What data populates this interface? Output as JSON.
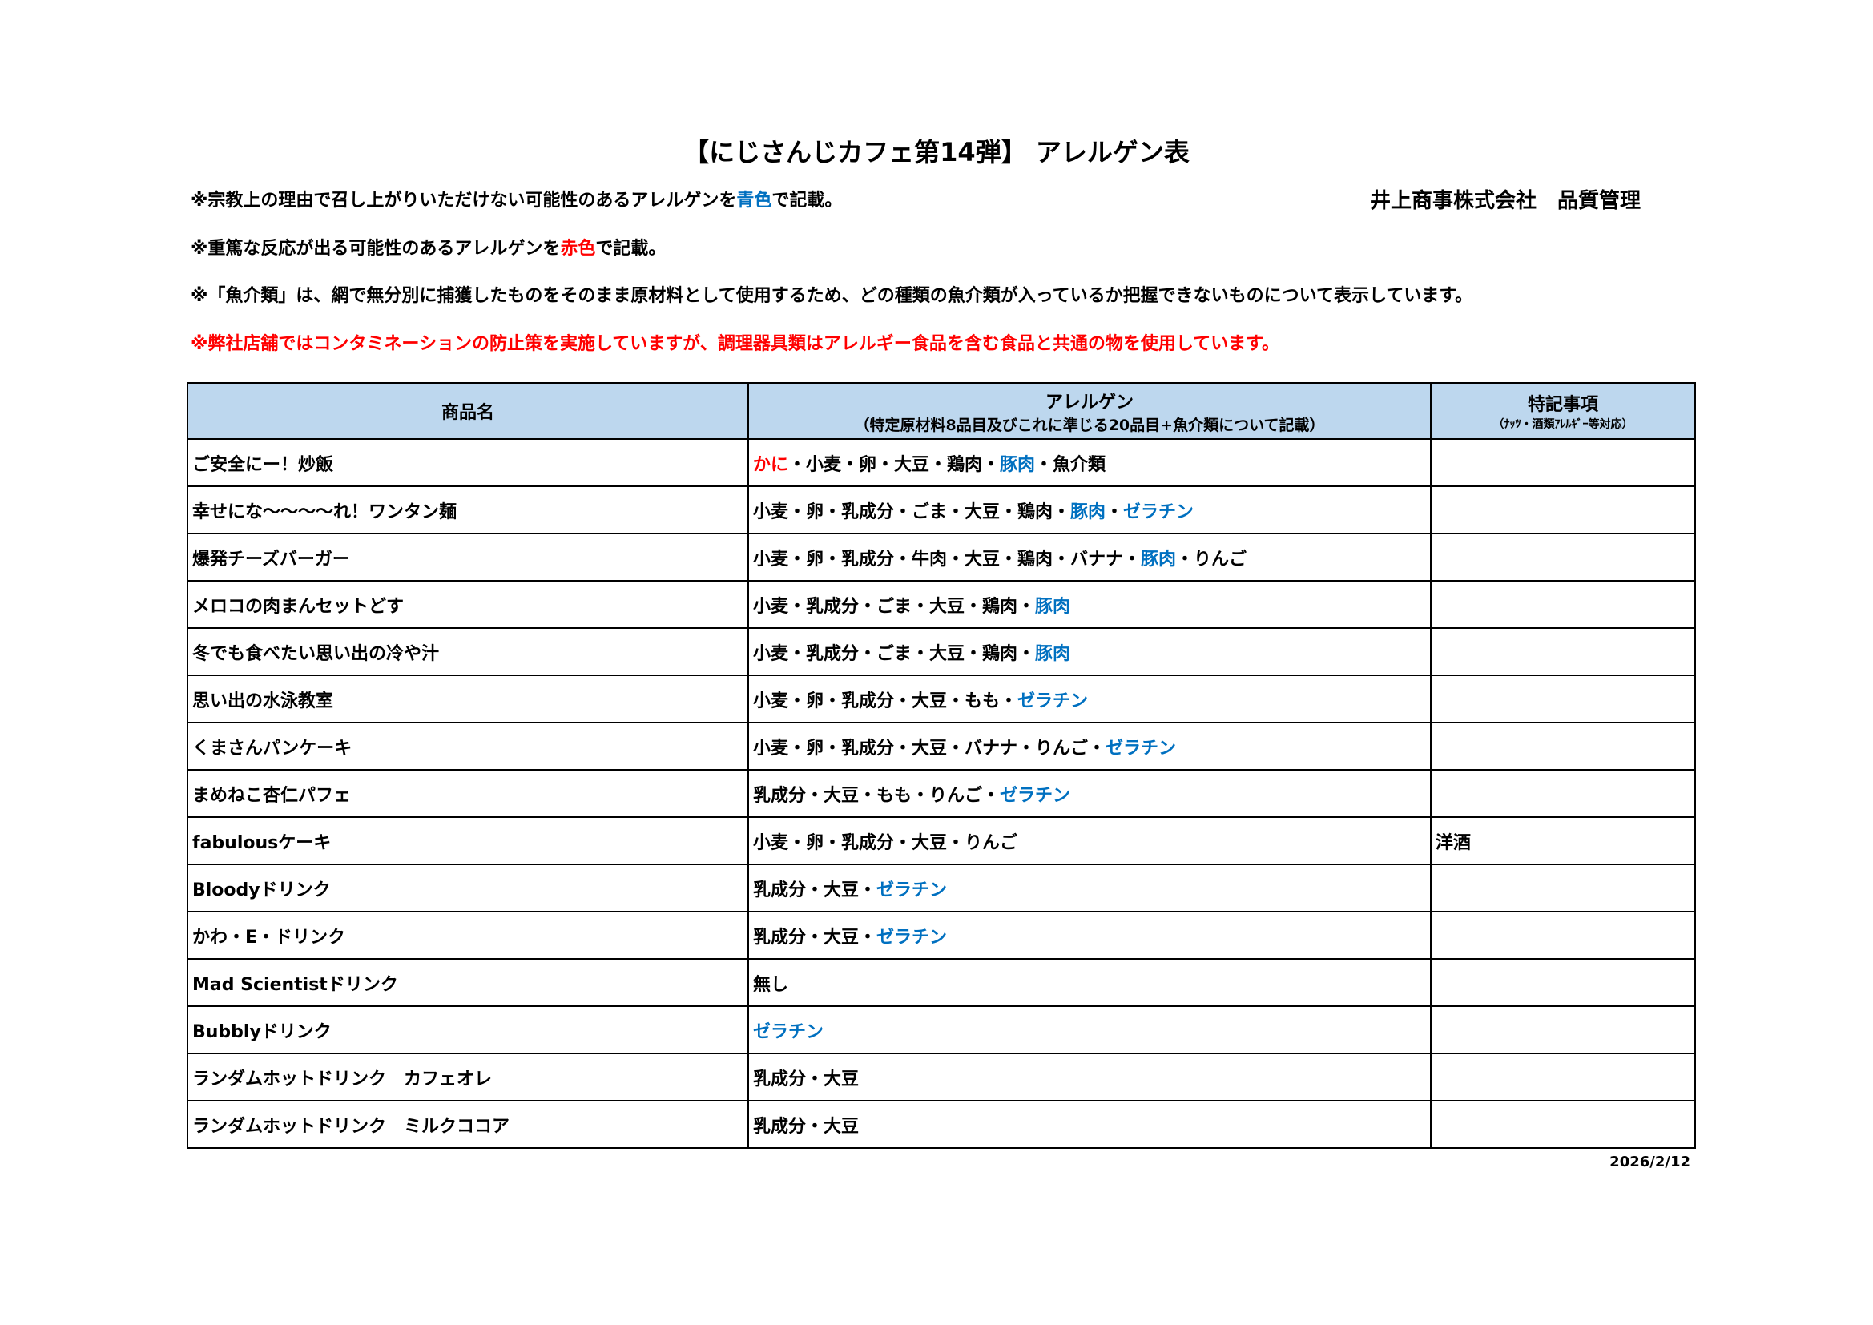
{
  "title": "【にじさんじカフェ第14弾】 アレルゲン表",
  "company": "井上商事株式会社　品質管理",
  "colors": {
    "blue": "#0070c0",
    "red": "#ff0000",
    "header_bg": "#bdd7ee"
  },
  "notes": {
    "n1": {
      "a": "※宗教上の理由で召し上がりいただけない可能性のあるアレルゲンを",
      "b": "青色",
      "c": "で記載。"
    },
    "n2": {
      "a": "※重篤な反応が出る可能性のあるアレルゲンを",
      "b": "赤色",
      "c": "で記載。"
    },
    "n3": "※「魚介類」は、網で無分別に捕獲したものをそのまま原材料として使用するため、どの種類の魚介類が入っているか把握できないものについて表示しています。",
    "n4": "※弊社店舗ではコンタミネーションの防止策を実施していますが、調理器具類はアレルギー食品を含む食品と共通の物を使用しています。"
  },
  "table": {
    "headers": {
      "name": "商品名",
      "allergen": "アレルゲン",
      "allergen_sub": "（特定原材料8品目及びこれに準じる20品目+魚介類について記載）",
      "special": "特記事項",
      "special_sub": "（ﾅｯﾂ・酒類ｱﾚﾙｷﾞｰ等対応）"
    },
    "rows": [
      {
        "name": "ご安全にー！炒飯",
        "allergens": [
          [
            "かに",
            "red"
          ],
          [
            "・小麦・卵・大豆・鶏肉・",
            ""
          ],
          [
            "豚肉",
            "blue"
          ],
          [
            "・魚介類",
            ""
          ]
        ],
        "special": ""
      },
      {
        "name": "幸せにな～～～～れ！ワンタン麺",
        "allergens": [
          [
            "小麦・卵・乳成分・ごま・大豆・鶏肉・",
            ""
          ],
          [
            "豚肉",
            "blue"
          ],
          [
            "・",
            ""
          ],
          [
            "ゼラチン",
            "blue"
          ]
        ],
        "special": ""
      },
      {
        "name": "爆発チーズバーガー",
        "allergens": [
          [
            "小麦・卵・乳成分・牛肉・大豆・鶏肉・バナナ・",
            ""
          ],
          [
            "豚肉",
            "blue"
          ],
          [
            "・りんご",
            ""
          ]
        ],
        "special": ""
      },
      {
        "name": "メロコの肉まんセットどす",
        "allergens": [
          [
            "小麦・乳成分・ごま・大豆・鶏肉・",
            ""
          ],
          [
            "豚肉",
            "blue"
          ]
        ],
        "special": ""
      },
      {
        "name": "冬でも食べたい思い出の冷や汁",
        "allergens": [
          [
            "小麦・乳成分・ごま・大豆・鶏肉・",
            ""
          ],
          [
            "豚肉",
            "blue"
          ]
        ],
        "special": ""
      },
      {
        "name": "思い出の水泳教室",
        "allergens": [
          [
            "小麦・卵・乳成分・大豆・もも・",
            ""
          ],
          [
            "ゼラチン",
            "blue"
          ]
        ],
        "special": ""
      },
      {
        "name": "くまさんパンケーキ",
        "allergens": [
          [
            "小麦・卵・乳成分・大豆・バナナ・りんご・",
            ""
          ],
          [
            "ゼラチン",
            "blue"
          ]
        ],
        "special": ""
      },
      {
        "name": "まめねこ杏仁パフェ",
        "allergens": [
          [
            "乳成分・大豆・もも・りんご・",
            ""
          ],
          [
            "ゼラチン",
            "blue"
          ]
        ],
        "special": ""
      },
      {
        "name": "fabulousケーキ",
        "allergens": [
          [
            "小麦・卵・乳成分・大豆・りんご",
            ""
          ]
        ],
        "special": "洋酒"
      },
      {
        "name": "Bloodyドリンク",
        "allergens": [
          [
            "乳成分・大豆・",
            ""
          ],
          [
            "ゼラチン",
            "blue"
          ]
        ],
        "special": ""
      },
      {
        "name": "かわ・E・ドリンク",
        "allergens": [
          [
            "乳成分・大豆・",
            ""
          ],
          [
            "ゼラチン",
            "blue"
          ]
        ],
        "special": ""
      },
      {
        "name": "Mad Scientistドリンク",
        "allergens": [
          [
            "無し",
            ""
          ]
        ],
        "special": ""
      },
      {
        "name": "Bubblyドリンク",
        "allergens": [
          [
            "ゼラチン",
            "blue"
          ]
        ],
        "special": ""
      },
      {
        "name": "ランダムホットドリンク　カフェオレ",
        "allergens": [
          [
            "乳成分・大豆",
            ""
          ]
        ],
        "special": ""
      },
      {
        "name": "ランダムホットドリンク　ミルクココア",
        "allergens": [
          [
            "乳成分・大豆",
            ""
          ]
        ],
        "special": ""
      }
    ]
  },
  "date": "2026/2/12"
}
